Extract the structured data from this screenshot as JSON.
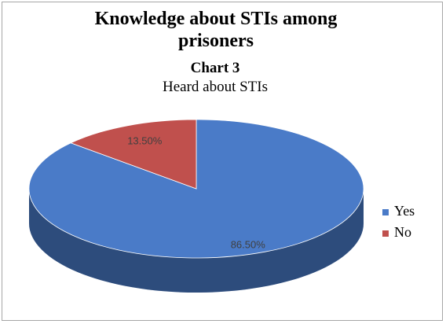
{
  "chart_data": {
    "type": "pie",
    "title": "Knowledge about STIs among prisoners",
    "chart_label": "Chart 3",
    "subtitle": "Heard about STIs",
    "categories": [
      "Yes",
      "No"
    ],
    "values": [
      86.5,
      13.5
    ],
    "value_labels": [
      "86.50%",
      "13.50%"
    ],
    "colors": [
      "#4a7bc8",
      "#c0504d"
    ],
    "legend": "right",
    "style_3d": true
  }
}
